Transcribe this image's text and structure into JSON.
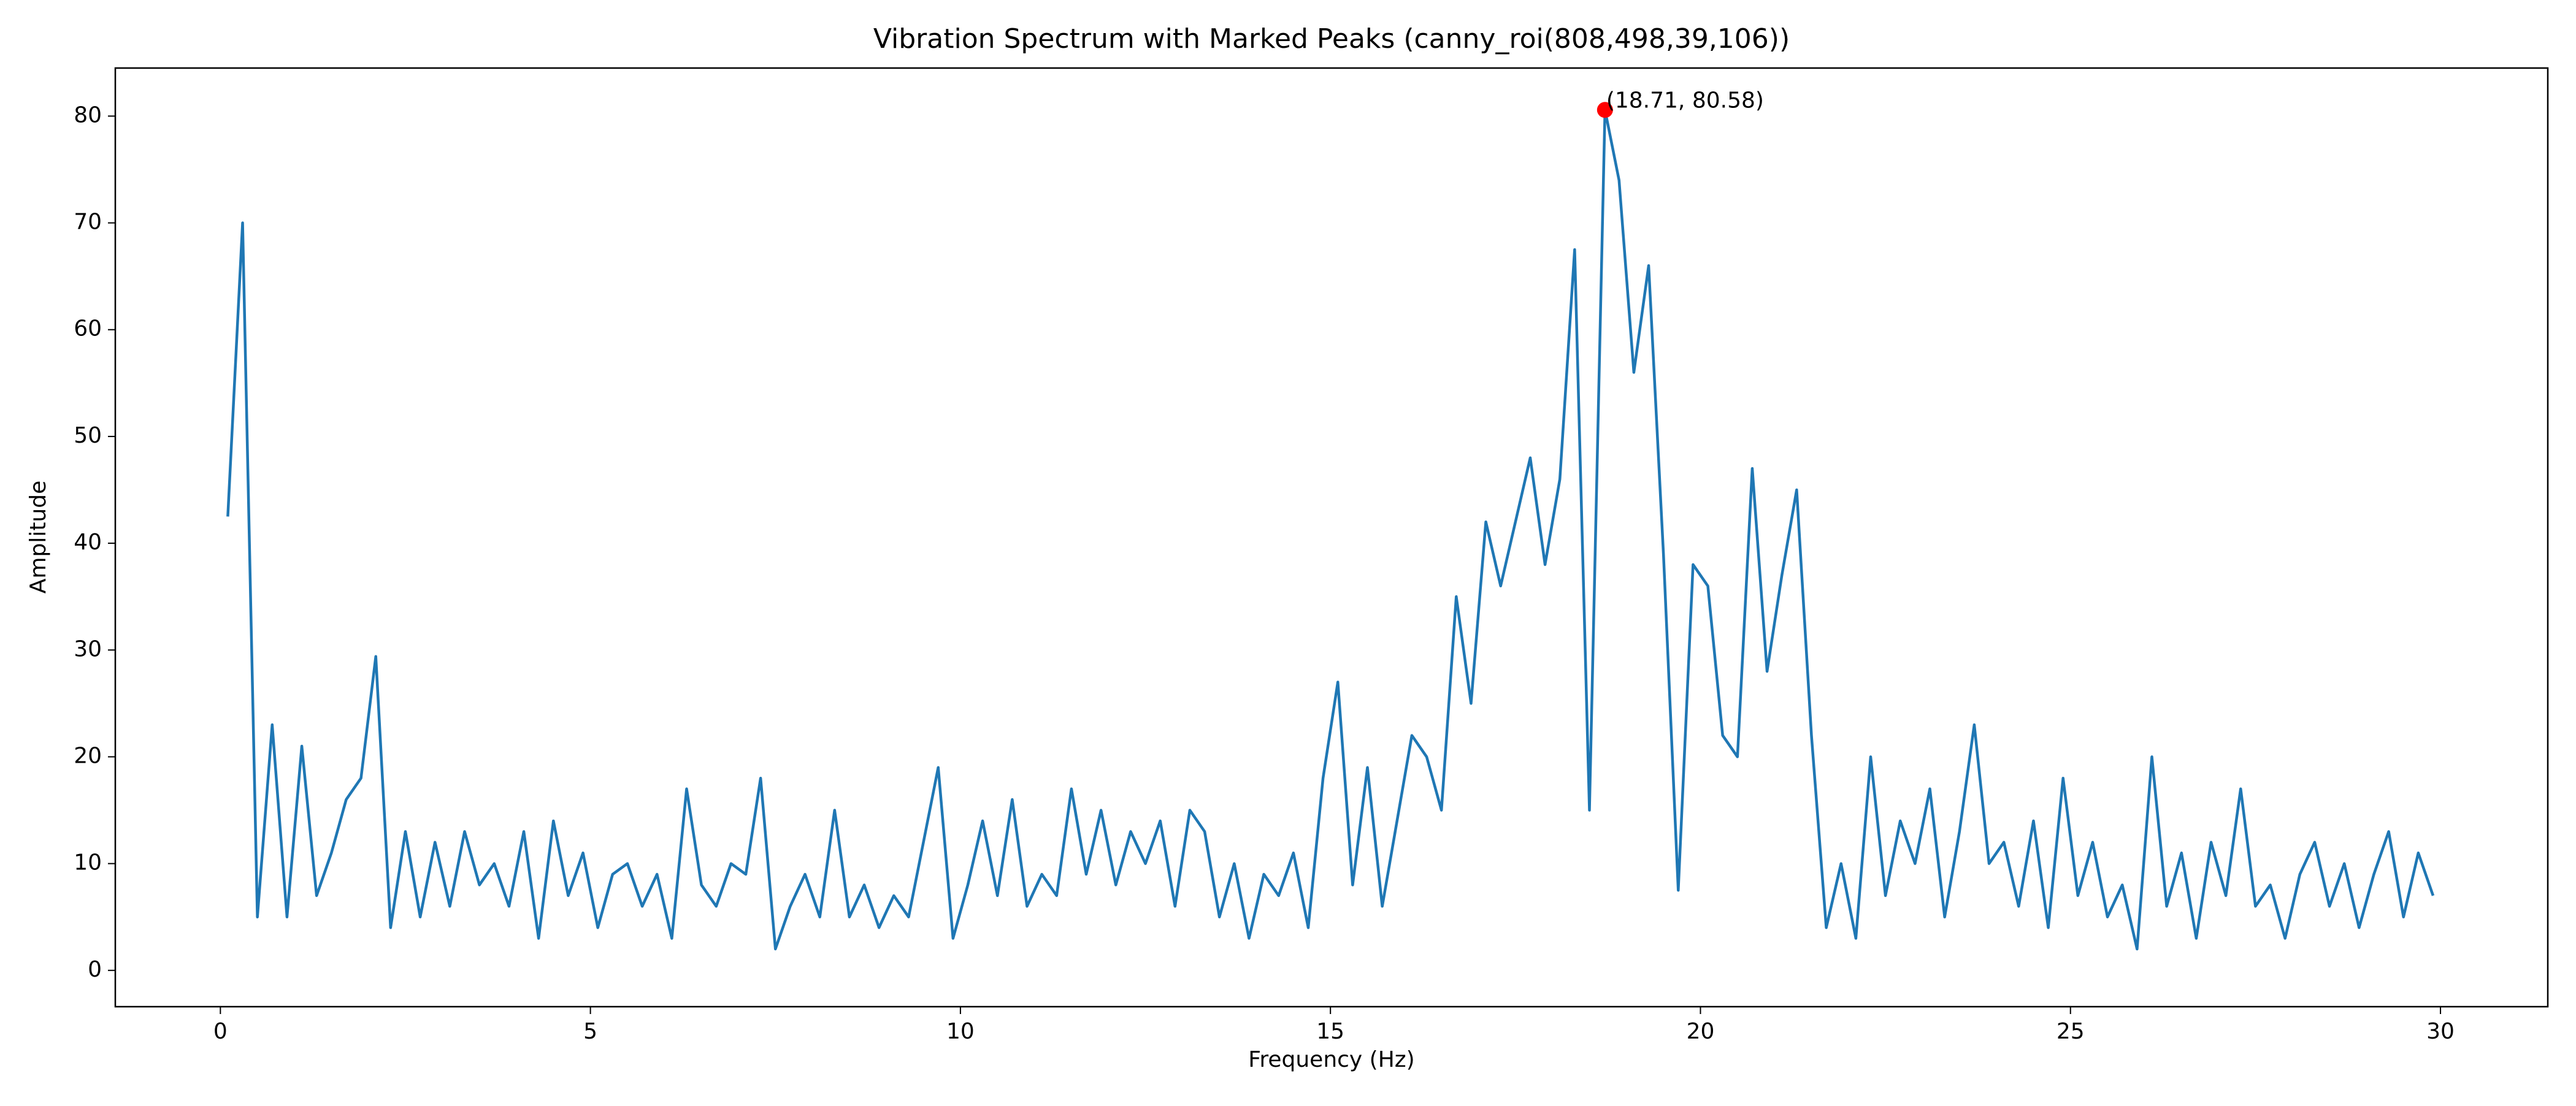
{
  "chart_data": {
    "type": "line",
    "title": "Vibration Spectrum with Marked Peaks (canny_roi(808,498,39,106))",
    "x_label": "Frequency (Hz)",
    "y_label": "Amplitude",
    "x": [
      0.1,
      0.3,
      0.5,
      0.7,
      0.9,
      1.1,
      1.3,
      1.5,
      1.7,
      1.9,
      2.1,
      2.3,
      2.5,
      2.7,
      2.9,
      3.1,
      3.3,
      3.5,
      3.7,
      3.9,
      4.1,
      4.3,
      4.5,
      4.7,
      4.9,
      5.1,
      5.3,
      5.5,
      5.7,
      5.9,
      6.1,
      6.3,
      6.5,
      6.7,
      6.9,
      7.1,
      7.3,
      7.5,
      7.7,
      7.9,
      8.1,
      8.3,
      8.5,
      8.7,
      8.9,
      9.1,
      9.3,
      9.5,
      9.7,
      9.9,
      10.1,
      10.3,
      10.5,
      10.7,
      10.9,
      11.1,
      11.3,
      11.5,
      11.7,
      11.9,
      12.1,
      12.3,
      12.5,
      12.7,
      12.9,
      13.1,
      13.3,
      13.5,
      13.7,
      13.9,
      14.1,
      14.3,
      14.5,
      14.7,
      14.9,
      15.1,
      15.3,
      15.5,
      15.7,
      15.9,
      16.1,
      16.3,
      16.5,
      16.7,
      16.9,
      17.1,
      17.3,
      17.5,
      17.7,
      17.9,
      18.1,
      18.3,
      18.5,
      18.71,
      18.9,
      19.1,
      19.3,
      19.5,
      19.7,
      19.9,
      20.1,
      20.3,
      20.5,
      20.7,
      20.9,
      21.1,
      21.3,
      21.5,
      21.7,
      21.9,
      22.1,
      22.3,
      22.5,
      22.7,
      22.9,
      23.1,
      23.3,
      23.5,
      23.7,
      23.9,
      24.1,
      24.3,
      24.5,
      24.7,
      24.9,
      25.1,
      25.3,
      25.5,
      25.7,
      25.9,
      26.1,
      26.3,
      26.5,
      26.7,
      26.9,
      27.1,
      27.3,
      27.5,
      27.7,
      27.9,
      28.1,
      28.3,
      28.5,
      28.7,
      28.9,
      29.1,
      29.3,
      29.5,
      29.7,
      29.9
    ],
    "values": [
      42.5,
      70,
      5,
      23,
      5,
      21,
      7,
      11,
      16,
      18,
      29.4,
      4,
      13,
      5,
      12,
      6,
      13,
      8,
      10,
      6,
      13,
      3,
      14,
      7,
      11,
      4,
      9,
      10,
      6,
      9,
      3,
      17,
      8,
      6,
      10,
      9,
      18,
      2,
      6,
      9,
      5,
      15,
      5,
      8,
      4,
      7,
      5,
      12,
      19,
      3,
      8,
      14,
      7,
      16,
      6,
      9,
      7,
      17,
      9,
      15,
      8,
      13,
      10,
      14,
      6,
      15,
      13,
      5,
      10,
      3,
      9,
      7,
      11,
      4,
      18,
      27,
      8,
      19,
      6,
      14,
      22,
      20,
      15,
      35,
      25,
      42,
      36,
      42,
      48,
      38,
      46,
      67.5,
      15,
      80.58,
      74,
      56,
      66,
      39,
      7.5,
      38,
      36,
      22,
      20,
      47,
      28,
      37,
      45,
      22,
      4,
      10,
      3,
      20,
      7,
      14,
      10,
      17,
      5,
      13,
      23,
      10,
      12,
      6,
      14,
      4,
      18,
      7,
      12,
      5,
      8,
      2,
      20,
      6,
      11,
      3,
      12,
      7,
      17,
      6,
      8,
      3,
      9,
      12,
      6,
      10,
      4,
      9,
      13,
      5,
      11,
      7
    ],
    "color": "#1f77b4",
    "peaks": [
      {
        "x": 18.71,
        "y": 80.58,
        "label": "(18.71, 80.58)",
        "color": "#ff0000"
      }
    ],
    "xlim": [
      -1.42,
      31.45
    ],
    "xticks": [
      0,
      5,
      10,
      15,
      20,
      25,
      30
    ],
    "ylim": [
      -3.4,
      84.5
    ],
    "yticks": [
      0,
      10,
      20,
      30,
      40,
      50,
      60,
      70,
      80
    ],
    "grid": false
  }
}
